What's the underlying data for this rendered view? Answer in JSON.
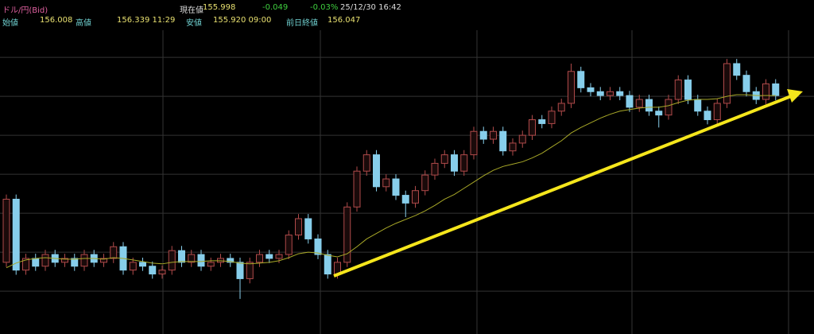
{
  "header": {
    "symbol": "ドル/円(Bid)",
    "current_label": "現在値",
    "current": "155.998",
    "change": "-0.049",
    "change_pct": "-0.03%",
    "datetime": "25/12/30 16:42",
    "open_label": "始値",
    "open": "156.008",
    "high_label": "高値",
    "high": "156.339 11:29",
    "low_label": "安値",
    "low": "155.920 09:00",
    "prev_close_label": "前日終値",
    "prev_close": "156.047"
  },
  "chart_data": {
    "type": "candlestick",
    "up_color": "#b04a4a",
    "down_color": "#87ceeb",
    "ylim": [
      152.95,
      156.93
    ],
    "yticks": [
      153.5,
      154,
      154.5,
      155,
      155.5,
      156,
      156.5
    ],
    "grid": true,
    "open": [
      153.87,
      154.68,
      153.77,
      153.92,
      153.82,
      153.97,
      153.87,
      153.92,
      153.82,
      153.97,
      153.87,
      153.92,
      154.07,
      153.77,
      153.87,
      153.82,
      153.72,
      153.77,
      154.02,
      153.87,
      153.97,
      153.82,
      153.87,
      153.92,
      153.87,
      153.66,
      153.87,
      153.97,
      153.92,
      153.97,
      154.22,
      154.43,
      154.17,
      153.97,
      153.72,
      153.87,
      154.58,
      155.04,
      155.25,
      154.84,
      154.94,
      154.73,
      154.63,
      154.79,
      154.99,
      155.14,
      155.25,
      155.04,
      155.25,
      155.55,
      155.45,
      155.55,
      155.3,
      155.4,
      155.5,
      155.7,
      155.65,
      155.81,
      155.91,
      156.32,
      156.11,
      156.06,
      156.01,
      156.06,
      156.01,
      155.86,
      155.96,
      155.81,
      155.76,
      155.96,
      156.21,
      155.96,
      155.81,
      155.7,
      155.91,
      156.42,
      156.27,
      156.06,
      155.96,
      156.16
    ],
    "high": [
      154.74,
      154.74,
      153.98,
      153.98,
      154.03,
      154.03,
      153.98,
      153.98,
      154.03,
      154.03,
      153.98,
      154.13,
      154.13,
      153.93,
      153.93,
      153.88,
      153.83,
      154.08,
      154.08,
      154.03,
      154.03,
      153.93,
      153.98,
      153.98,
      153.93,
      153.93,
      154.03,
      154.03,
      154.03,
      154.28,
      154.49,
      154.49,
      154.23,
      154.03,
      153.93,
      154.64,
      155.1,
      155.31,
      155.31,
      155.0,
      155.0,
      154.79,
      154.85,
      155.05,
      155.2,
      155.31,
      155.31,
      155.31,
      155.61,
      155.61,
      155.61,
      155.61,
      155.46,
      155.56,
      155.76,
      155.76,
      155.87,
      155.97,
      156.42,
      156.38,
      156.17,
      156.12,
      156.12,
      156.12,
      156.07,
      156.02,
      156.02,
      155.87,
      156.02,
      156.27,
      156.27,
      156.02,
      155.87,
      155.97,
      156.48,
      156.48,
      156.33,
      156.12,
      156.22,
      156.22
    ],
    "low": [
      153.81,
      153.71,
      153.71,
      153.76,
      153.76,
      153.81,
      153.81,
      153.76,
      153.76,
      153.81,
      153.81,
      153.86,
      153.71,
      153.71,
      153.76,
      153.66,
      153.66,
      153.71,
      153.81,
      153.81,
      153.76,
      153.76,
      153.81,
      153.81,
      153.4,
      153.6,
      153.81,
      153.86,
      153.86,
      153.91,
      154.16,
      154.11,
      153.91,
      153.66,
      153.66,
      153.81,
      154.52,
      154.98,
      154.78,
      154.78,
      154.67,
      154.45,
      154.57,
      154.73,
      154.93,
      155.08,
      154.98,
      154.98,
      155.19,
      155.39,
      155.39,
      155.24,
      155.24,
      155.34,
      155.44,
      155.59,
      155.59,
      155.75,
      155.85,
      156.05,
      156.0,
      155.95,
      155.95,
      155.95,
      155.8,
      155.8,
      155.75,
      155.6,
      155.7,
      155.9,
      155.9,
      155.75,
      155.64,
      155.64,
      155.85,
      156.21,
      156.0,
      155.9,
      155.9,
      155.95
    ],
    "close": [
      154.68,
      153.77,
      153.92,
      153.82,
      153.97,
      153.87,
      153.92,
      153.82,
      153.97,
      153.87,
      153.92,
      154.07,
      153.77,
      153.87,
      153.82,
      153.72,
      153.77,
      154.02,
      153.87,
      153.97,
      153.82,
      153.87,
      153.92,
      153.87,
      153.66,
      153.87,
      153.97,
      153.92,
      153.97,
      154.22,
      154.43,
      154.17,
      153.97,
      153.72,
      153.87,
      154.58,
      155.04,
      155.25,
      154.84,
      154.94,
      154.73,
      154.63,
      154.79,
      154.99,
      155.14,
      155.25,
      155.04,
      155.25,
      155.55,
      155.45,
      155.55,
      155.3,
      155.4,
      155.5,
      155.7,
      155.65,
      155.81,
      155.91,
      156.32,
      156.11,
      156.06,
      156.01,
      156.06,
      156.01,
      155.86,
      155.96,
      155.81,
      155.76,
      155.96,
      156.21,
      155.96,
      155.81,
      155.7,
      155.91,
      156.42,
      156.27,
      156.06,
      155.96,
      156.16,
      156.01
    ],
    "moving_average": {
      "color": "#a8a828",
      "values": [
        153.8,
        153.86,
        153.9,
        153.92,
        153.93,
        153.92,
        153.91,
        153.91,
        153.92,
        153.92,
        153.91,
        153.93,
        153.92,
        153.9,
        153.88,
        153.86,
        153.85,
        153.87,
        153.88,
        153.88,
        153.88,
        153.89,
        153.89,
        153.88,
        153.86,
        153.85,
        153.86,
        153.87,
        153.89,
        153.93,
        153.98,
        154.0,
        153.99,
        153.96,
        153.94,
        153.98,
        154.07,
        154.17,
        154.24,
        154.31,
        154.37,
        154.42,
        154.47,
        154.53,
        154.6,
        154.68,
        154.74,
        154.82,
        154.9,
        154.98,
        155.05,
        155.1,
        155.13,
        155.16,
        155.21,
        155.27,
        155.35,
        155.43,
        155.53,
        155.6,
        155.66,
        155.72,
        155.77,
        155.81,
        155.83,
        155.85,
        155.86,
        155.86,
        155.88,
        155.92,
        155.95,
        155.96,
        155.96,
        155.97,
        156.0,
        156.02,
        156.02,
        156.01,
        156.01,
        156.01
      ]
    }
  }
}
